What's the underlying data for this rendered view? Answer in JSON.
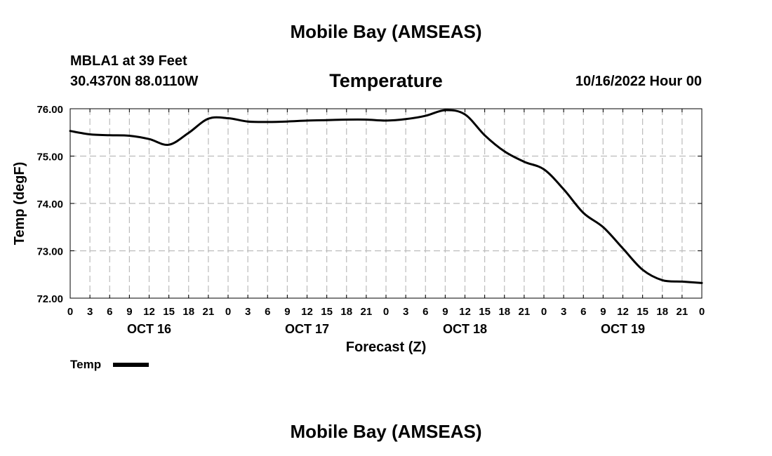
{
  "header": {
    "title": "Mobile Bay (AMSEAS)",
    "station": "MBLA1 at 39 Feet",
    "coords": "30.4370N  88.0110W",
    "datetime": "10/16/2022 Hour 00"
  },
  "footer": {
    "title": "Mobile Bay (AMSEAS)"
  },
  "chart_data": {
    "type": "line",
    "title": "Temperature",
    "xlabel": "Forecast (Z)",
    "ylabel": "Temp (degF)",
    "ylim": [
      72.0,
      76.0
    ],
    "yticks": [
      "72.00",
      "73.00",
      "74.00",
      "75.00",
      "76.00"
    ],
    "xlim": [
      0,
      96
    ],
    "xtick_labels": [
      "0",
      "3",
      "6",
      "9",
      "12",
      "15",
      "18",
      "21",
      "0",
      "3",
      "6",
      "9",
      "12",
      "15",
      "18",
      "21",
      "0",
      "3",
      "6",
      "9",
      "12",
      "15",
      "18",
      "21",
      "0",
      "3",
      "6",
      "9",
      "12",
      "15",
      "18",
      "21",
      "0"
    ],
    "date_labels": [
      {
        "label": "OCT 16",
        "hour": 12
      },
      {
        "label": "OCT 17",
        "hour": 36
      },
      {
        "label": "OCT 18",
        "hour": 60
      },
      {
        "label": "OCT 19",
        "hour": 84
      }
    ],
    "grid": true,
    "legend": {
      "position": "bottom-left",
      "entries": [
        "Temp"
      ]
    },
    "series": [
      {
        "name": "Temp",
        "x": [
          0,
          3,
          6,
          9,
          12,
          15,
          18,
          21,
          24,
          27,
          30,
          33,
          36,
          39,
          42,
          45,
          48,
          51,
          54,
          57,
          60,
          63,
          66,
          69,
          72,
          75,
          78,
          81,
          84,
          87,
          90,
          93,
          96
        ],
        "values": [
          75.53,
          75.46,
          75.44,
          75.43,
          75.36,
          75.24,
          75.49,
          75.79,
          75.8,
          75.73,
          75.72,
          75.73,
          75.75,
          75.76,
          75.77,
          75.77,
          75.75,
          75.78,
          75.85,
          75.97,
          75.88,
          75.44,
          75.1,
          74.88,
          74.72,
          74.3,
          73.8,
          73.5,
          73.05,
          72.6,
          72.38,
          72.35,
          72.32
        ]
      }
    ]
  }
}
